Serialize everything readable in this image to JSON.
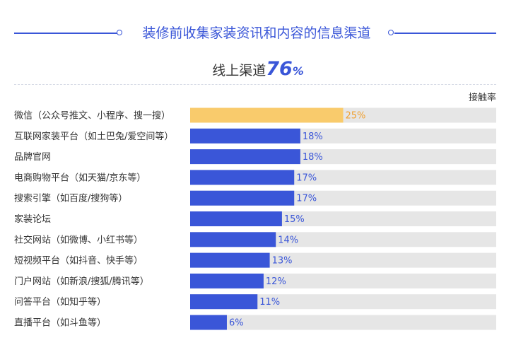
{
  "title": "装修前收集家装资讯和内容的信息渠道",
  "subtitle": {
    "label": "线上渠道",
    "value": "76",
    "unit": "%"
  },
  "colors": {
    "highlight": "#f9cb6c",
    "bar": "#3a56d8",
    "track": "#e6e6e6",
    "highlight_text": "#f0a030",
    "bar_text": "#3a56d8"
  },
  "chart_data": {
    "type": "bar",
    "orientation": "horizontal",
    "series_name": "接触率",
    "xlim": [
      0,
      50
    ],
    "unit": "%",
    "categories": [
      "微信（公众号推文、小程序、搜一搜）",
      "互联网家装平台（如土巴兔/爱空间等）",
      "品牌官网",
      "电商购物平台（如天猫/京东等）",
      "搜索引擎（如百度/搜狗等）",
      "家装论坛",
      "社交网站（如微博、小红书等）",
      "短视频平台（如抖音、快手等）",
      "门户网站（如新浪/搜狐/腾讯等）",
      "问答平台（如知乎等）",
      "直播平台（如斗鱼等）"
    ],
    "values": [
      25,
      18,
      18,
      17,
      17,
      15,
      14,
      13,
      12,
      11,
      6
    ],
    "value_labels": [
      "25%",
      "18%",
      "18%",
      "17%",
      "17%",
      "15%",
      "14%",
      "13%",
      "12%",
      "11%",
      "6%"
    ],
    "highlight_index": 0
  }
}
